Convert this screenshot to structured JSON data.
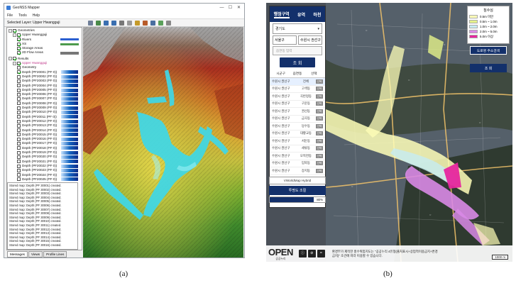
{
  "captions": {
    "a": "(a)",
    "b": "(b)"
  },
  "panelA": {
    "window_title": "GeoNSS Mapper",
    "menu": [
      "File",
      "Tools",
      "Help"
    ],
    "selected_layer": "Selected Layer: Upper Hwangguji",
    "tree": {
      "geometries": "Geometries",
      "upper": "Upper Hwangguji",
      "rivers": "Rivers",
      "xs": "XS",
      "storage": "Storage Areas",
      "flow2d": "2D Flow Areas",
      "results": "Results",
      "upper_r": "Upper Hwangguji",
      "geometry": "Geometry",
      "depth_layers": [
        "Depth (PF20001 (PF 0))",
        "Depth (PF20002 (PF 0))",
        "Depth (PF20003 (PF 0))",
        "Depth (PF20004 (PF 0))",
        "Depth (PF20005 (PF 0))",
        "Depth (PF20006 (PF 0))",
        "Depth (PF20007 (PF 0))",
        "Depth (PF20008 (PF 0))",
        "Depth (PF20009 (PF 0))",
        "Depth (PF20010 (PF 0))",
        "Depth (PF20011 (PF 0))",
        "Depth (PF20012 (PF 0))",
        "Depth (PF20013 (PF 0))",
        "Depth (PF20014 (PF 0))",
        "Depth (PF20015 (PF 0))",
        "Depth (PF20016 (PF 0))",
        "Depth (PF20017 (PF 0))",
        "Depth (PF20018 (PF 0))",
        "Depth (PF20019 (PF 0))",
        "Depth (PF20020 (PF 0))",
        "Depth (PF20021 (PF 0))",
        "Depth (PF20022 (PF 0))",
        "Depth (PF20023 (PF 0))",
        "Depth (PF20024 (PF 0))",
        "Depth (PF20025 (PF 0))",
        "Depth (PF20026 (PF 0))",
        "Depth (PF20027 (PF 0))"
      ]
    },
    "messages": [
      "Stored map: Depth (PF 30001) created.",
      "Stored map: Depth (PF 30002) created.",
      "Stored map: Depth (PF 30003) created.",
      "Stored map: Depth (PF 30004) created.",
      "Stored map: Depth (PF 30005) created.",
      "Stored map: Depth (PF 30006) created.",
      "Stored map: Depth (PF 30007) created.",
      "Stored map: Depth (PF 30008) created.",
      "Stored map: Depth (PF 30009) created.",
      "Stored map: Depth (PF 30010) created.",
      "Stored map: Depth (PF 30011) created.",
      "Stored map: Depth (PF 30012) created.",
      "Stored map: Depth (PF 30013) created.",
      "Stored map: Depth (PF 30014) created.",
      "Stored map: Depth (PF 30015) created.",
      "Stored map: Depth (PF 30016) created."
    ],
    "tabs": [
      "Messages",
      "Views",
      "Profile Lines"
    ]
  },
  "panelB": {
    "top_tabs": [
      "행정구역",
      "유역",
      "하천"
    ],
    "province": "경기도",
    "city": "서울구",
    "district": "수원시 권선구",
    "search_placeholder": "읍면동 입력",
    "search_button": "조 회",
    "list_headers": [
      "시군구",
      "읍면동",
      "선택"
    ],
    "list_rows": [
      [
        "수원시 권선구",
        "전체"
      ],
      [
        "수원시 권선구",
        "고색동"
      ],
      [
        "수원시 권선구",
        "곡반정동"
      ],
      [
        "수원시 권선구",
        "구운동"
      ],
      [
        "수원시 권선구",
        "권선동"
      ],
      [
        "수원시 권선구",
        "금곡동"
      ],
      [
        "수원시 권선구",
        "당수동"
      ],
      [
        "수원시 권선구",
        "대황교동"
      ],
      [
        "수원시 권선구",
        "서둔동"
      ],
      [
        "수원시 권선구",
        "세류동"
      ],
      [
        "수원시 권선구",
        "오목천동"
      ],
      [
        "수원시 권선구",
        "입북동"
      ],
      [
        "수원시 권선구",
        "장지동"
      ]
    ],
    "select_tag": "선택",
    "basemap": "VWorldMap Hybrid",
    "transparency": "투명도 조절",
    "opacity_label": "80%",
    "opacity_value": 0.8,
    "legend_title": "침수심",
    "legend": [
      {
        "label": "0.5m 미만",
        "color": "#ffffb8"
      },
      {
        "label": "0.5m ~ 1.0m",
        "color": "#e5f28a"
      },
      {
        "label": "1.0m ~ 2.0m",
        "color": "#c6ecf2"
      },
      {
        "label": "2.0m ~ 5.0m",
        "color": "#d98ae6"
      },
      {
        "label": "5.0m 이상",
        "color": "#e6269e"
      }
    ],
    "address_button": "도로명 주소검색",
    "view_button": "조 회",
    "open_logo": "OPEN",
    "open_sub": "공공누리",
    "footer_text": "환경부가 제작한 홍수위험지도는 \"공공누리 4유형(출처표시+상업적이용금지+변경금지)\" 조건에 따라 이용할 수 있습니다.",
    "scale": "1000 m"
  }
}
